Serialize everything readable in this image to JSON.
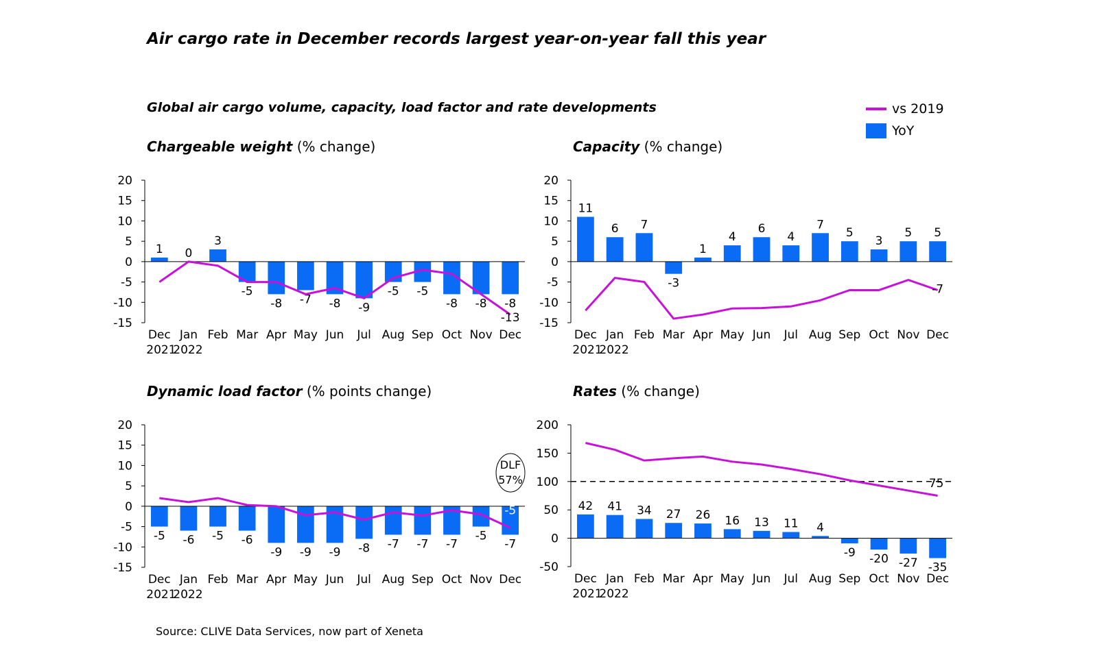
{
  "title": "Air cargo rate in December records largest year-on-year fall this year",
  "subtitle": "Global air cargo volume, capacity, load factor and rate developments",
  "source": "Source: CLIVE Data Services, now part of Xeneta",
  "legend": {
    "line": "vs 2019",
    "bar": "YoY"
  },
  "colors": {
    "bar": "#0a6cf5",
    "line": "#c811d8"
  },
  "chart_data": [
    {
      "type": "bar+line",
      "title_bold": "Chargeable weight",
      "title_rest": " (% change)",
      "categories": [
        "Dec",
        "Jan",
        "Feb",
        "Mar",
        "Apr",
        "May",
        "Jun",
        "Jul",
        "Aug",
        "Sep",
        "Oct",
        "Nov",
        "Dec"
      ],
      "year_labels": [
        "2021",
        "2022"
      ],
      "ylim": [
        -15,
        20
      ],
      "yticks": [
        20,
        15,
        10,
        5,
        0,
        -5,
        -10,
        -15
      ],
      "series": [
        {
          "name": "YoY",
          "type": "bar",
          "values": [
            1,
            0,
            3,
            -5,
            -8,
            -7,
            -8,
            -9,
            -5,
            -5,
            -8,
            -8,
            -8
          ]
        },
        {
          "name": "vs 2019",
          "type": "line",
          "values": [
            -5,
            0,
            -1,
            -5,
            -5,
            -8,
            -6.5,
            -9,
            -4,
            -2,
            -3,
            -8,
            -13
          ],
          "end_label": "-13"
        }
      ]
    },
    {
      "type": "bar+line",
      "title_bold": "Capacity",
      "title_rest": " (% change)",
      "categories": [
        "Dec",
        "Jan",
        "Feb",
        "Mar",
        "Apr",
        "May",
        "Jun",
        "Jul",
        "Aug",
        "Sep",
        "Oct",
        "Nov",
        "Dec"
      ],
      "year_labels": [
        "2021",
        "2022"
      ],
      "ylim": [
        -15,
        20
      ],
      "yticks": [
        20,
        15,
        10,
        5,
        0,
        -5,
        -10,
        -15
      ],
      "series": [
        {
          "name": "YoY",
          "type": "bar",
          "values": [
            11,
            6,
            7,
            -3,
            1,
            4,
            6,
            4,
            7,
            5,
            3,
            5,
            5
          ]
        },
        {
          "name": "vs 2019",
          "type": "line",
          "values": [
            -12,
            -4,
            -5,
            -14,
            -13,
            -11.5,
            -11.4,
            -11,
            -9.5,
            -7,
            -7,
            -4.5,
            -7
          ],
          "end_label": "-7"
        }
      ]
    },
    {
      "type": "bar+line",
      "title_bold": "Dynamic load factor",
      "title_rest": " (% points change)",
      "categories": [
        "Dec",
        "Jan",
        "Feb",
        "Mar",
        "Apr",
        "May",
        "Jun",
        "Jul",
        "Aug",
        "Sep",
        "Oct",
        "Nov",
        "Dec"
      ],
      "year_labels": [
        "2021",
        "2022"
      ],
      "ylim": [
        -15,
        20
      ],
      "yticks": [
        20,
        15,
        10,
        5,
        0,
        -5,
        -10,
        -15
      ],
      "annotation": [
        "DLF",
        "57%"
      ],
      "series": [
        {
          "name": "YoY",
          "type": "bar",
          "values": [
            -5,
            -6,
            -5,
            -6,
            -9,
            -9,
            -9,
            -8,
            -7,
            -7,
            -7,
            -5,
            -7
          ]
        },
        {
          "name": "vs 2019",
          "type": "line",
          "values": [
            2,
            1,
            2,
            0.3,
            0,
            -2.2,
            -1.5,
            -3.3,
            -1.5,
            -2.3,
            -1,
            -2,
            -5.3
          ],
          "end_label": "-5"
        }
      ]
    },
    {
      "type": "bar+line",
      "title_bold": "Rates",
      "title_rest": " (% change)",
      "categories": [
        "Dec",
        "Jan",
        "Feb",
        "Mar",
        "Apr",
        "May",
        "Jun",
        "Jul",
        "Aug",
        "Sep",
        "Oct",
        "Nov",
        "Dec"
      ],
      "year_labels": [
        "2021",
        "2022"
      ],
      "ylim": [
        -50,
        200
      ],
      "yticks": [
        200,
        150,
        100,
        50,
        0,
        -50
      ],
      "reference_line": 100,
      "series": [
        {
          "name": "YoY",
          "type": "bar",
          "values": [
            42,
            41,
            34,
            27,
            26,
            16,
            13,
            11,
            4,
            -9,
            -20,
            -27,
            -35
          ]
        },
        {
          "name": "vs 2019",
          "type": "line",
          "values": [
            168,
            156,
            137,
            141,
            144,
            135,
            130,
            122,
            113,
            102,
            93,
            84,
            75
          ],
          "end_label": "75"
        }
      ]
    }
  ]
}
